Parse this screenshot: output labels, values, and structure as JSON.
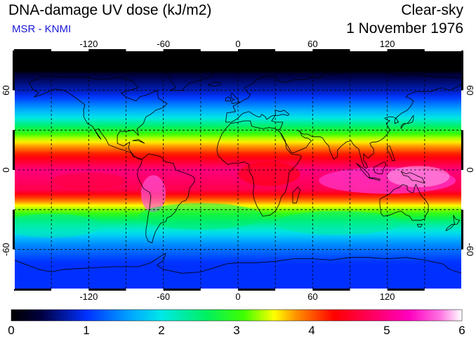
{
  "header": {
    "title": "DNA-damage UV dose (kJ/m2)",
    "source": "MSR - KNMI",
    "conditions": "Clear-sky",
    "date": "1 November 1976"
  },
  "map": {
    "longitude_ticks": [
      -120,
      -60,
      0,
      60,
      120
    ],
    "latitude_ticks": [
      60,
      0,
      -60
    ],
    "longitude_tick_labels": [
      "-120",
      "-60",
      "0",
      "60",
      "120"
    ],
    "latitude_tick_labels": [
      "60",
      "0",
      "-60"
    ],
    "gridlines": "dashed",
    "extent": {
      "lon": [
        -180,
        180
      ],
      "lat": [
        -90,
        90
      ]
    }
  },
  "colorbar": {
    "min": 0,
    "max": 6,
    "tick_labels": [
      "0",
      "1",
      "2",
      "3",
      "4",
      "5",
      "6"
    ],
    "stops": [
      {
        "v": 0.0,
        "c": "#000000"
      },
      {
        "v": 0.4,
        "c": "#000040"
      },
      {
        "v": 1.0,
        "c": "#0030ff"
      },
      {
        "v": 1.6,
        "c": "#00a8ff"
      },
      {
        "v": 2.0,
        "c": "#00e8e8"
      },
      {
        "v": 2.6,
        "c": "#00f060"
      },
      {
        "v": 3.1,
        "c": "#40ff00"
      },
      {
        "v": 3.5,
        "c": "#ffff00"
      },
      {
        "v": 3.8,
        "c": "#ff9000"
      },
      {
        "v": 4.3,
        "c": "#ff0000"
      },
      {
        "v": 4.8,
        "c": "#ff0060"
      },
      {
        "v": 5.3,
        "c": "#ff00c0"
      },
      {
        "v": 5.7,
        "c": "#ff70e0"
      },
      {
        "v": 6.0,
        "c": "#ffffff"
      }
    ]
  }
}
